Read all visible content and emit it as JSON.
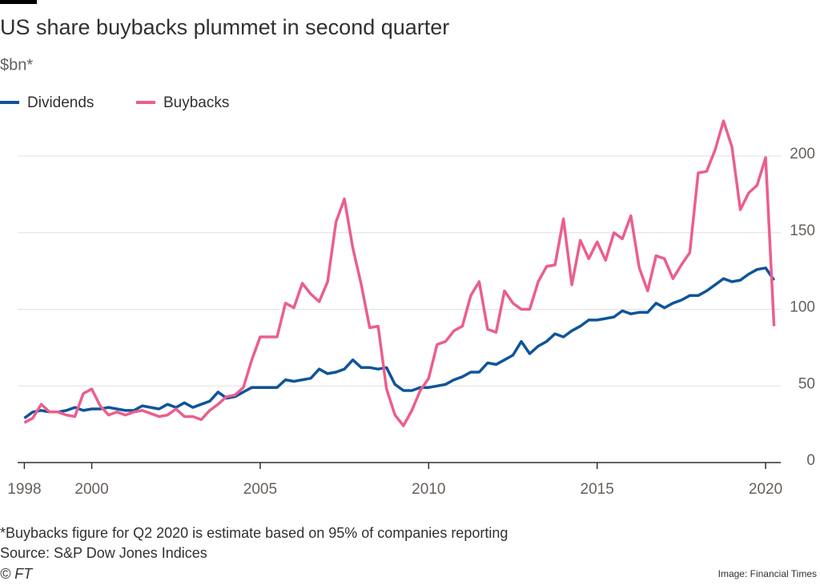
{
  "chart_data": {
    "type": "line",
    "title": "US share buybacks plummet in second quarter",
    "subtitle": "$bn*",
    "footnote": "*Buybacks figure for Q2 2020 is estimate based on 95% of companies reporting",
    "source": "Source: S&P Dow Jones Indices",
    "copyright": "© FT",
    "image_credit": "Image: Financial Times",
    "legend": "top-left",
    "grid": true,
    "x": [
      1998,
      1998.25,
      1998.5,
      1998.75,
      1999,
      1999.25,
      1999.5,
      1999.75,
      2000,
      2000.25,
      2000.5,
      2000.75,
      2001,
      2001.25,
      2001.5,
      2001.75,
      2002,
      2002.25,
      2002.5,
      2002.75,
      2003,
      2003.25,
      2003.5,
      2003.75,
      2004,
      2004.25,
      2004.5,
      2004.75,
      2005,
      2005.25,
      2005.5,
      2005.75,
      2006,
      2006.25,
      2006.5,
      2006.75,
      2007,
      2007.25,
      2007.5,
      2007.75,
      2008,
      2008.25,
      2008.5,
      2008.75,
      2009,
      2009.25,
      2009.5,
      2009.75,
      2010,
      2010.25,
      2010.5,
      2010.75,
      2011,
      2011.25,
      2011.5,
      2011.75,
      2012,
      2012.25,
      2012.5,
      2012.75,
      2013,
      2013.25,
      2013.5,
      2013.75,
      2014,
      2014.25,
      2014.5,
      2014.75,
      2015,
      2015.25,
      2015.5,
      2015.75,
      2016,
      2016.25,
      2016.5,
      2016.75,
      2017,
      2017.25,
      2017.5,
      2017.75,
      2018,
      2018.25,
      2018.5,
      2018.75,
      2019,
      2019.25,
      2019.5,
      2019.75,
      2020,
      2020.25
    ],
    "series": [
      {
        "name": "Dividends",
        "color": "#0f5499",
        "values": [
          29,
          33,
          34,
          33,
          33,
          34,
          36,
          34,
          35,
          35,
          36,
          35,
          34,
          34,
          37,
          36,
          35,
          38,
          36,
          39,
          36,
          38,
          40,
          46,
          42,
          43,
          46,
          49,
          49,
          49,
          49,
          54,
          53,
          54,
          55,
          61,
          58,
          59,
          61,
          67,
          62,
          62,
          61,
          62,
          51,
          47,
          47,
          49,
          49,
          50,
          51,
          54,
          56,
          59,
          59,
          65,
          64,
          67,
          70,
          79,
          71,
          76,
          79,
          84,
          82,
          86,
          89,
          93,
          93,
          94,
          95,
          99,
          97,
          98,
          98,
          104,
          101,
          104,
          106,
          109,
          109,
          112,
          116,
          120,
          118,
          119,
          123,
          126,
          127,
          119
        ]
      },
      {
        "name": "Buybacks",
        "color": "#eb5e8d",
        "values": [
          26,
          29,
          38,
          33,
          33,
          31,
          30,
          45,
          48,
          37,
          31,
          33,
          31,
          33,
          34,
          32,
          30,
          31,
          35,
          30,
          30,
          28,
          34,
          38,
          43,
          44,
          49,
          67,
          82,
          82,
          82,
          104,
          101,
          117,
          110,
          105,
          118,
          157,
          172,
          140,
          116,
          88,
          89,
          48,
          31,
          24,
          34,
          47,
          55,
          77,
          79,
          86,
          89,
          109,
          118,
          87,
          85,
          112,
          104,
          100,
          100,
          118,
          128,
          129,
          159,
          116,
          145,
          133,
          144,
          132,
          150,
          146,
          161,
          127,
          112,
          135,
          133,
          120,
          129,
          137,
          189,
          190,
          204,
          223,
          206,
          165,
          176,
          181,
          199,
          89
        ]
      }
    ],
    "xlim": [
      1997.8,
      2020.45
    ],
    "xticks": [
      1998,
      2000,
      2005,
      2010,
      2015,
      2020
    ],
    "ylim": [
      0,
      230
    ],
    "yticks": [
      0,
      50,
      100,
      150,
      200
    ]
  }
}
